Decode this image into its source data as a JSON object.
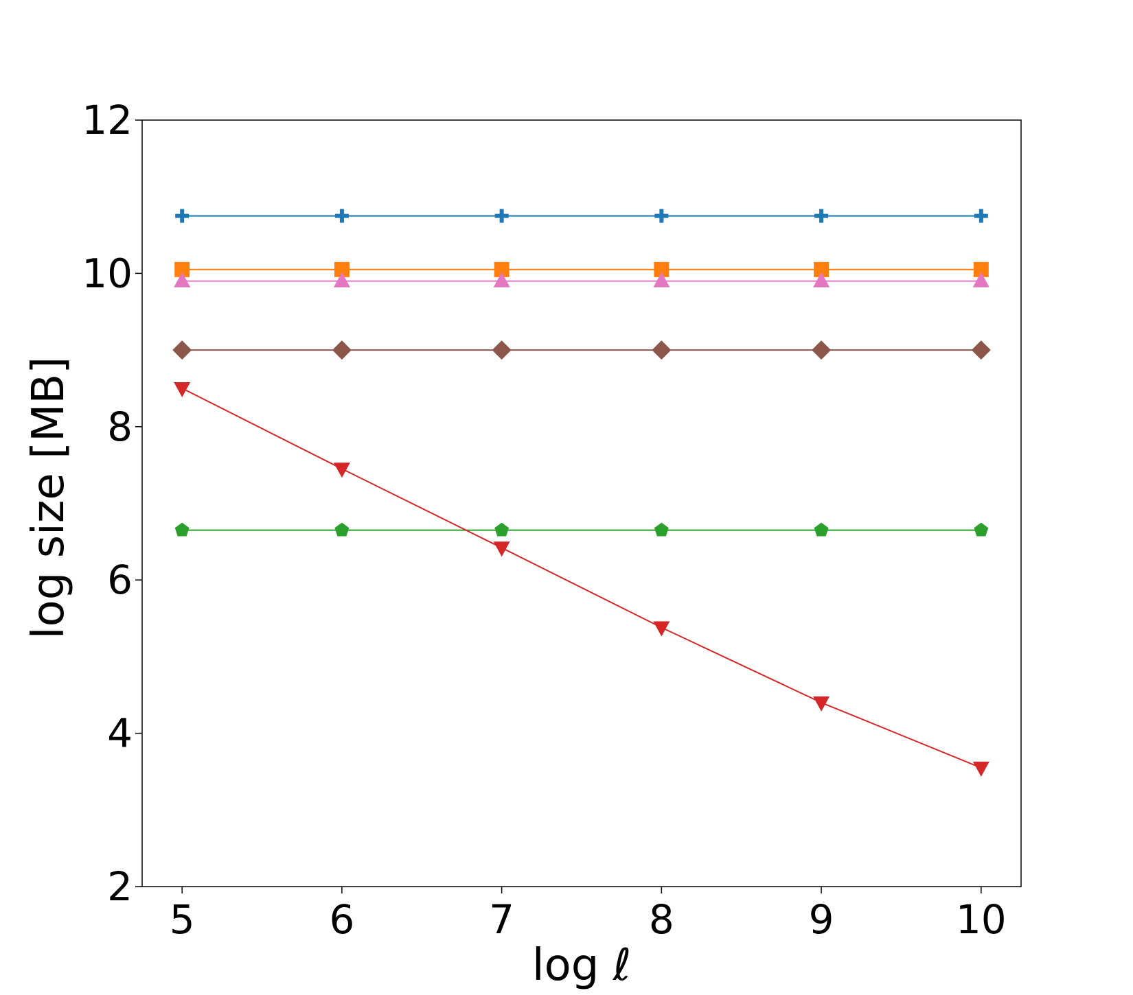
{
  "chart_data": {
    "type": "line",
    "title": "",
    "xlabel": "log ℓ",
    "ylabel": "log size [MB]",
    "xlim": [
      4.75,
      10.25
    ],
    "ylim": [
      2,
      12
    ],
    "xticks": [
      5,
      6,
      7,
      8,
      9,
      10
    ],
    "yticks": [
      2,
      4,
      6,
      8,
      10,
      12
    ],
    "grid": false,
    "legend": "none",
    "x": [
      5,
      6,
      7,
      8,
      9,
      10
    ],
    "series": [
      {
        "color": "#1f77b4",
        "marker": "plus",
        "values": [
          10.75,
          10.75,
          10.75,
          10.75,
          10.75,
          10.75
        ]
      },
      {
        "color": "#ff7f0e",
        "marker": "square",
        "values": [
          10.05,
          10.05,
          10.05,
          10.05,
          10.05,
          10.05
        ]
      },
      {
        "color": "#e377c2",
        "marker": "triangle-up",
        "values": [
          9.9,
          9.9,
          9.9,
          9.9,
          9.9,
          9.9
        ]
      },
      {
        "color": "#8c564b",
        "marker": "diamond",
        "values": [
          9.0,
          9.0,
          9.0,
          9.0,
          9.0,
          9.0
        ]
      },
      {
        "color": "#2ca02c",
        "marker": "pentagon",
        "values": [
          6.65,
          6.65,
          6.65,
          6.65,
          6.65,
          6.65
        ]
      },
      {
        "color": "#d62728",
        "marker": "triangle-down",
        "values": [
          8.5,
          7.45,
          6.42,
          5.38,
          4.4,
          3.55
        ]
      }
    ]
  }
}
